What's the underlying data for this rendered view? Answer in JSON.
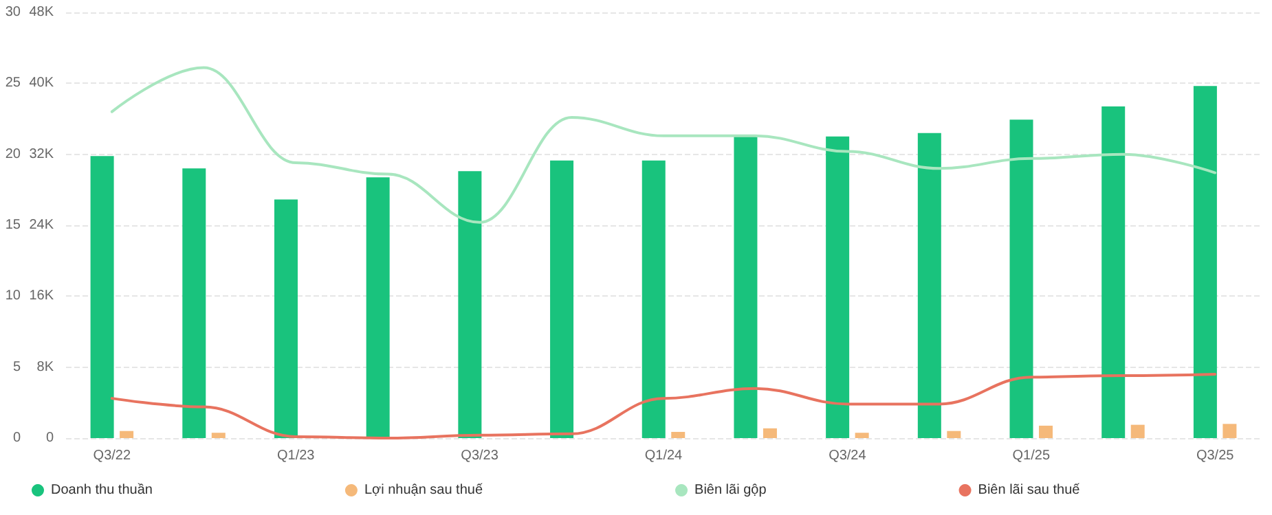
{
  "chart_data": {
    "type": "bar",
    "categories": [
      "Q3/22",
      null,
      "Q1/23",
      null,
      "Q3/23",
      null,
      "Q1/24",
      null,
      "Q3/24",
      null,
      "Q1/25",
      null,
      "Q3/25"
    ],
    "series": [
      {
        "name": "Doanh thu thuần",
        "axis": "y2",
        "color": "#19c37d",
        "values": [
          31800,
          30400,
          26900,
          29400,
          30100,
          31300,
          31300,
          34100,
          34000,
          34400,
          35900,
          37400,
          39700
        ]
      },
      {
        "name": "Lợi nhuận sau thuế",
        "axis": "y2",
        "color": "#f5b97a",
        "values": [
          800,
          600,
          0,
          0,
          0,
          0,
          700,
          1100,
          600,
          800,
          1400,
          1500,
          1600
        ]
      },
      {
        "name": "Biên lãi gộp",
        "type": "line",
        "color": "#a8e6bf",
        "values": [
          23.0,
          26.1,
          19.4,
          18.6,
          15.2,
          22.6,
          21.3,
          21.3,
          20.2,
          19.0,
          19.7,
          20.0,
          18.7
        ]
      },
      {
        "name": "Biên lãi sau thuế",
        "type": "line",
        "color": "#e8735f",
        "values": [
          2.8,
          2.2,
          0.1,
          0,
          0.2,
          0.3,
          2.8,
          3.5,
          2.4,
          2.4,
          4.3,
          4.4,
          4.5
        ]
      }
    ],
    "ylim": [
      0,
      30
    ],
    "yticks": [
      0,
      5,
      10,
      15,
      20,
      25,
      30
    ],
    "y2lim": [
      0,
      48000
    ],
    "y2ticks": [
      {
        "value": 0,
        "label": "0"
      },
      {
        "value": 8000,
        "label": "8K"
      },
      {
        "value": 16000,
        "label": "16K"
      },
      {
        "value": 24000,
        "label": "24K"
      },
      {
        "value": 32000,
        "label": "32K"
      },
      {
        "value": 40000,
        "label": "40K"
      },
      {
        "value": 48000,
        "label": "48K"
      }
    ],
    "grid": "y",
    "legend": "bottom",
    "marker": "none",
    "line_style": "solid"
  }
}
